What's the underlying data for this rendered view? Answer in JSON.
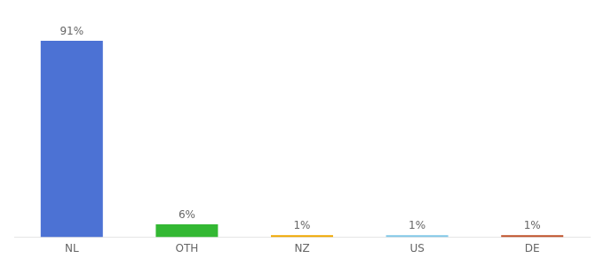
{
  "chart_data": {
    "type": "bar",
    "categories": [
      "NL",
      "OTH",
      "NZ",
      "US",
      "DE"
    ],
    "values": [
      91,
      6,
      1,
      1,
      1
    ],
    "value_labels": [
      "91%",
      "6%",
      "1%",
      "1%",
      "1%"
    ],
    "colors": [
      "#4c72d4",
      "#33b833",
      "#f0a800",
      "#82c8e8",
      "#c0522a"
    ],
    "ylim": [
      0,
      100
    ],
    "data_labels": true,
    "tick_labels": "x",
    "grid": false
  }
}
